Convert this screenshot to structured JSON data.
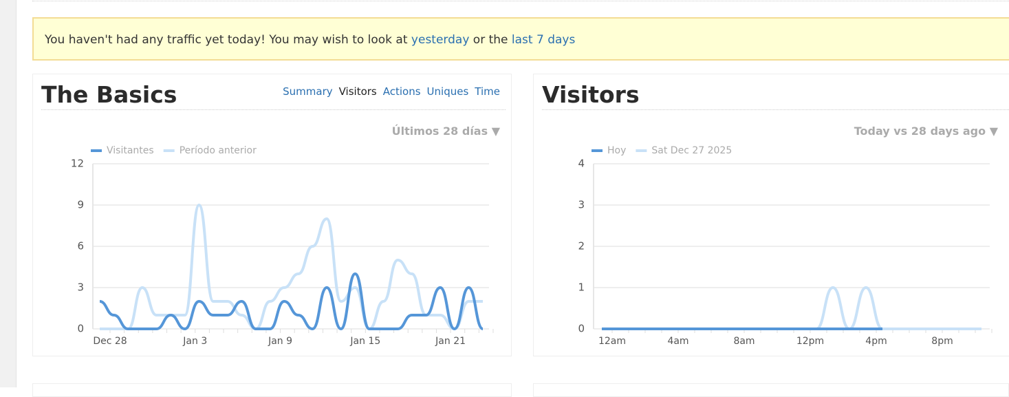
{
  "notice": {
    "text_before": "You haven't had any traffic yet today! You may wish to look at",
    "link_yesterday": "yesterday",
    "text_middle": "or the",
    "link_last7": "last 7 days"
  },
  "panels": [
    {
      "title": "The Basics",
      "tabs": [
        "Summary",
        "Visitors",
        "Actions",
        "Uniques",
        "Time"
      ],
      "active_tab": 1,
      "range": "Últimos 28 días ▼"
    },
    {
      "title": "Visitors",
      "range": "Today vs 28 days ago ▼"
    }
  ],
  "chart_data": [
    {
      "type": "line",
      "categories": [
        "Dec 28",
        null,
        null,
        null,
        null,
        null,
        "Jan 3",
        null,
        null,
        null,
        null,
        null,
        "Jan 9",
        null,
        null,
        null,
        null,
        null,
        "Jan 15",
        null,
        null,
        null,
        null,
        null,
        "Jan 21",
        null,
        null,
        null
      ],
      "series": [
        {
          "name": "Visitantes",
          "color": "#5596d8",
          "values": [
            2,
            1,
            0,
            0,
            0,
            1,
            0,
            2,
            1,
            1,
            2,
            0,
            0,
            2,
            1,
            0,
            3,
            0,
            4,
            0,
            0,
            0,
            1,
            1,
            3,
            0,
            3,
            0
          ]
        },
        {
          "name": "Período anterior",
          "color": "#c8e1f7",
          "values": [
            0,
            0,
            0,
            3,
            1,
            1,
            1,
            9,
            2,
            2,
            1,
            0,
            2,
            3,
            4,
            6,
            8,
            2,
            3,
            0,
            2,
            5,
            4,
            1,
            1,
            0,
            2,
            2
          ]
        }
      ],
      "ylim": [
        0,
        12
      ],
      "yticks": [
        0,
        3,
        6,
        9,
        12
      ],
      "grid": true
    },
    {
      "type": "line",
      "categories": [
        "12am",
        null,
        null,
        null,
        "4am",
        null,
        null,
        null,
        "8am",
        null,
        null,
        null,
        "12pm",
        null,
        null,
        null,
        "4pm",
        null,
        null,
        null,
        "8pm",
        null,
        null,
        null
      ],
      "series": [
        {
          "name": "Hoy",
          "color": "#5596d8",
          "values": [
            0,
            0,
            0,
            0,
            0,
            0,
            0,
            0,
            0,
            0,
            0,
            0,
            0,
            0,
            0,
            0,
            0,
            0,
            null,
            null,
            null,
            null,
            null,
            null
          ]
        },
        {
          "name": "Sat Dec 27 2025",
          "color": "#c8e1f7",
          "values": [
            0,
            0,
            0,
            0,
            0,
            0,
            0,
            0,
            0,
            0,
            0,
            0,
            0,
            0,
            1,
            0,
            1,
            0,
            0,
            0,
            0,
            0,
            0,
            0
          ]
        }
      ],
      "ylim": [
        0,
        4
      ],
      "yticks": [
        0,
        1,
        2,
        3,
        4
      ],
      "grid": true
    }
  ]
}
